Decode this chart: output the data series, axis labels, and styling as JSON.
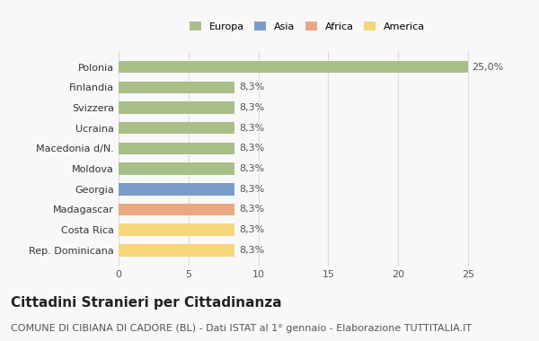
{
  "categories": [
    "Rep. Dominicana",
    "Costa Rica",
    "Madagascar",
    "Georgia",
    "Moldova",
    "Macedonia d/N.",
    "Ucraina",
    "Svizzera",
    "Finlandia",
    "Polonia"
  ],
  "values": [
    8.3,
    8.3,
    8.3,
    8.3,
    8.3,
    8.3,
    8.3,
    8.3,
    8.3,
    25.0
  ],
  "bar_colors": [
    "#f5d67a",
    "#f5d67a",
    "#e8a882",
    "#7a9cc9",
    "#a8bf8a",
    "#a8bf8a",
    "#a8bf8a",
    "#a8bf8a",
    "#a8bf8a",
    "#a8bf8a"
  ],
  "labels": [
    "8,3%",
    "8,3%",
    "8,3%",
    "8,3%",
    "8,3%",
    "8,3%",
    "8,3%",
    "8,3%",
    "8,3%",
    "25,0%"
  ],
  "legend": [
    {
      "label": "Europa",
      "color": "#a8bf8a"
    },
    {
      "label": "Asia",
      "color": "#7a9cc9"
    },
    {
      "label": "Africa",
      "color": "#e8a882"
    },
    {
      "label": "America",
      "color": "#f5d67a"
    }
  ],
  "xlim": [
    0,
    27
  ],
  "xticks": [
    0,
    5,
    10,
    15,
    20,
    25
  ],
  "title": "Cittadini Stranieri per Cittadinanza",
  "subtitle": "COMUNE DI CIBIANA DI CADORE (BL) - Dati ISTAT al 1° gennaio - Elaborazione TUTTITALIA.IT",
  "bg_color": "#f8f8f8",
  "grid_color": "#dddddd",
  "bar_height": 0.6,
  "title_fontsize": 11,
  "subtitle_fontsize": 8,
  "label_fontsize": 8,
  "tick_fontsize": 8
}
